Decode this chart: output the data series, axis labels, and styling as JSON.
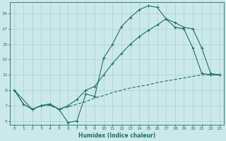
{
  "xlabel": "Humidex (Indice chaleur)",
  "background_color": "#cce9e9",
  "grid_color": "#aad0d0",
  "line_color": "#1a6e6e",
  "xlim": [
    -0.5,
    23.5
  ],
  "ylim": [
    4.5,
    20.5
  ],
  "xticks": [
    0,
    1,
    2,
    3,
    4,
    5,
    6,
    7,
    8,
    9,
    10,
    11,
    12,
    13,
    14,
    15,
    16,
    17,
    18,
    19,
    20,
    21,
    22,
    23
  ],
  "yticks": [
    5,
    7,
    9,
    11,
    13,
    15,
    17,
    19
  ],
  "curve1_x": [
    0,
    1,
    2,
    3,
    4,
    5,
    6,
    7,
    8,
    9,
    10,
    11,
    12,
    13,
    14,
    15,
    16,
    17,
    18,
    19,
    20,
    21,
    22,
    23
  ],
  "curve1_y": [
    9,
    7.2,
    6.5,
    7.0,
    7.2,
    6.5,
    4.8,
    5.0,
    8.5,
    8.2,
    13.2,
    15.0,
    17.3,
    18.5,
    19.5,
    20.0,
    19.8,
    18.3,
    17.2,
    17.0,
    14.5,
    11.2,
    11.0,
    11.0
  ],
  "curve2_x": [
    0,
    2,
    3,
    4,
    5,
    6,
    7,
    8,
    9,
    10,
    11,
    12,
    13,
    14,
    15,
    16,
    17,
    18,
    19,
    20,
    21,
    22,
    23
  ],
  "curve2_y": [
    9,
    6.5,
    7.0,
    7.2,
    6.5,
    7.0,
    7.8,
    9.0,
    9.5,
    11.0,
    12.5,
    13.8,
    15.0,
    16.0,
    16.8,
    17.5,
    18.3,
    17.8,
    17.2,
    17.0,
    14.5,
    11.2,
    11.0
  ],
  "curve3_x": [
    0,
    1,
    2,
    3,
    4,
    5,
    6,
    7,
    8,
    9,
    10,
    11,
    12,
    13,
    14,
    15,
    16,
    17,
    18,
    19,
    20,
    21,
    22,
    23
  ],
  "curve3_y": [
    9,
    7.2,
    6.5,
    7.0,
    7.0,
    6.5,
    6.8,
    7.2,
    7.5,
    8.0,
    8.3,
    8.7,
    9.0,
    9.3,
    9.5,
    9.7,
    10.0,
    10.2,
    10.4,
    10.6,
    10.8,
    11.0,
    11.0,
    11.0
  ]
}
